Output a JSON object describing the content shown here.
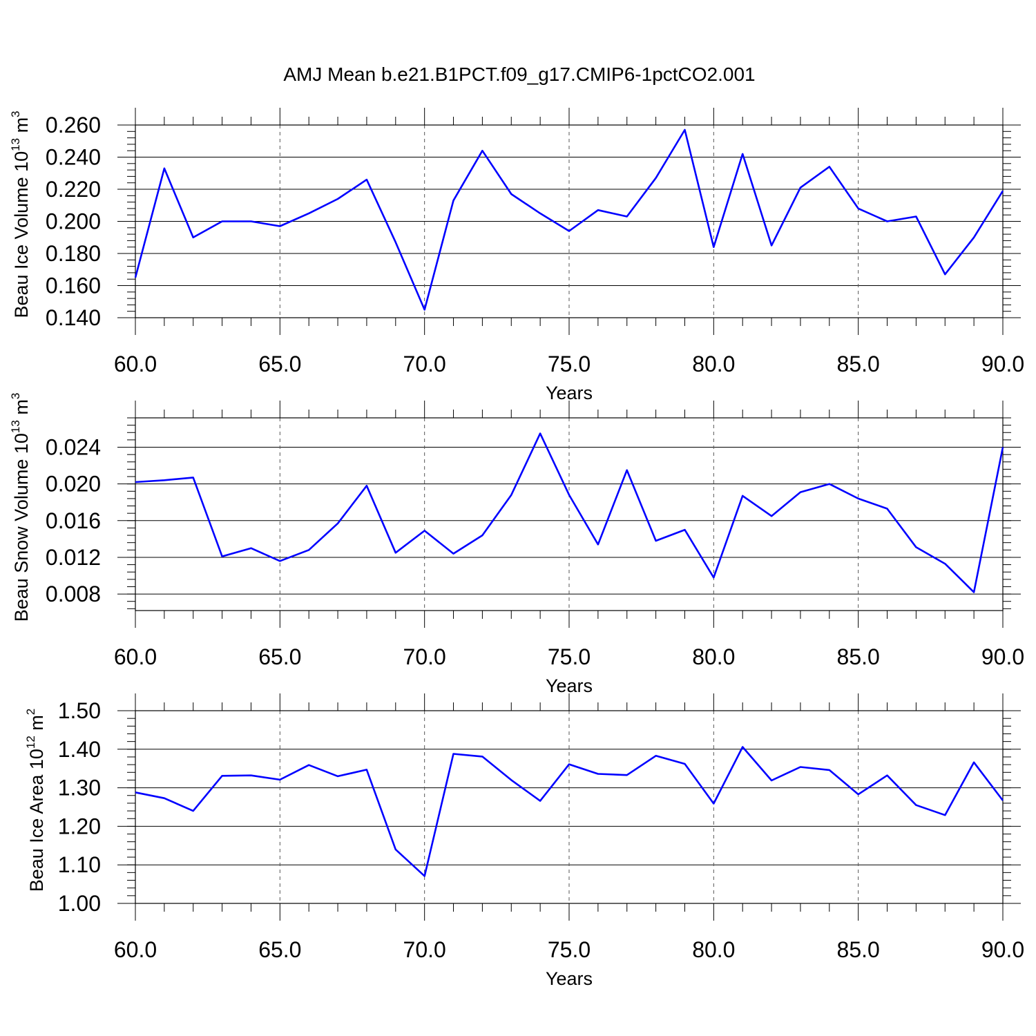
{
  "title": "AMJ Mean b.e21.B1PCT.f09_g17.CMIP6-1pctCO2.001",
  "colors": {
    "series": "#0000ff",
    "axis": "#000000",
    "grid": "#555555"
  },
  "chart_data": [
    {
      "type": "line",
      "title": "AMJ Mean b.e21.B1PCT.f09_g17.CMIP6-1pctCO2.001",
      "ylabel_base": "Beau Ice Volume 10",
      "ylabel_exp": "13",
      "ylabel_unit": " m",
      "ylabel_unit_exp": "3",
      "xlabel": "Years",
      "xlim": [
        60,
        90
      ],
      "ylim": [
        0.14,
        0.26
      ],
      "x_ticks": [
        "60.0",
        "65.0",
        "70.0",
        "75.0",
        "80.0",
        "85.0",
        "90.0"
      ],
      "y_ticks": [
        "0.140",
        "0.160",
        "0.180",
        "0.200",
        "0.220",
        "0.240",
        "0.260"
      ],
      "grid": true,
      "x": [
        60,
        61,
        62,
        63,
        64,
        65,
        66,
        67,
        68,
        69,
        70,
        71,
        72,
        73,
        74,
        75,
        76,
        77,
        78,
        79,
        80,
        81,
        82,
        83,
        84,
        85,
        86,
        87,
        88,
        89,
        90
      ],
      "values": [
        0.165,
        0.233,
        0.19,
        0.2,
        0.2,
        0.197,
        0.205,
        0.214,
        0.226,
        0.187,
        0.145,
        0.213,
        0.244,
        0.217,
        0.205,
        0.194,
        0.207,
        0.203,
        0.227,
        0.257,
        0.184,
        0.242,
        0.185,
        0.221,
        0.234,
        0.208,
        0.2,
        0.203,
        0.167,
        0.19,
        0.219
      ]
    },
    {
      "type": "line",
      "ylabel_base": "Beau Snow Volume 10",
      "ylabel_exp": "13",
      "ylabel_unit": " m",
      "ylabel_unit_exp": "3",
      "xlabel": "Years",
      "xlim": [
        60,
        90
      ],
      "ylim": [
        0.0062,
        0.0272
      ],
      "x_ticks": [
        "60.0",
        "65.0",
        "70.0",
        "75.0",
        "80.0",
        "85.0",
        "90.0"
      ],
      "y_ticks": [
        "0.008",
        "0.012",
        "0.016",
        "0.020",
        "0.024"
      ],
      "y_tick_values": [
        0.008,
        0.012,
        0.016,
        0.02,
        0.024
      ],
      "grid": true,
      "x": [
        60,
        61,
        62,
        63,
        64,
        65,
        66,
        67,
        68,
        69,
        70,
        71,
        72,
        73,
        74,
        75,
        76,
        77,
        78,
        79,
        80,
        81,
        82,
        83,
        84,
        85,
        86,
        87,
        88,
        89,
        90
      ],
      "values": [
        0.0202,
        0.0204,
        0.0207,
        0.0121,
        0.013,
        0.0116,
        0.0128,
        0.0157,
        0.0198,
        0.0125,
        0.0149,
        0.0124,
        0.0144,
        0.0188,
        0.0255,
        0.0188,
        0.0134,
        0.0215,
        0.0138,
        0.015,
        0.0098,
        0.0187,
        0.0165,
        0.0191,
        0.02,
        0.0184,
        0.0173,
        0.0131,
        0.0113,
        0.0082,
        0.024
      ]
    },
    {
      "type": "line",
      "ylabel_base": "Beau Ice Area 10",
      "ylabel_exp": "12",
      "ylabel_unit": " m",
      "ylabel_unit_exp": "2",
      "xlabel": "Years",
      "xlim": [
        60,
        90
      ],
      "ylim": [
        1.0,
        1.5
      ],
      "x_ticks": [
        "60.0",
        "65.0",
        "70.0",
        "75.0",
        "80.0",
        "85.0",
        "90.0"
      ],
      "y_ticks": [
        "1.00",
        "1.10",
        "1.20",
        "1.30",
        "1.40",
        "1.50"
      ],
      "grid": true,
      "x": [
        60,
        61,
        62,
        63,
        64,
        65,
        66,
        67,
        68,
        69,
        70,
        71,
        72,
        73,
        74,
        75,
        76,
        77,
        78,
        79,
        80,
        81,
        82,
        83,
        84,
        85,
        86,
        87,
        88,
        89,
        90
      ],
      "values": [
        1.288,
        1.273,
        1.24,
        1.331,
        1.332,
        1.321,
        1.359,
        1.33,
        1.347,
        1.14,
        1.071,
        1.388,
        1.381,
        1.32,
        1.266,
        1.361,
        1.336,
        1.333,
        1.383,
        1.362,
        1.259,
        1.406,
        1.319,
        1.354,
        1.346,
        1.283,
        1.332,
        1.255,
        1.229,
        1.366,
        1.267
      ]
    }
  ]
}
